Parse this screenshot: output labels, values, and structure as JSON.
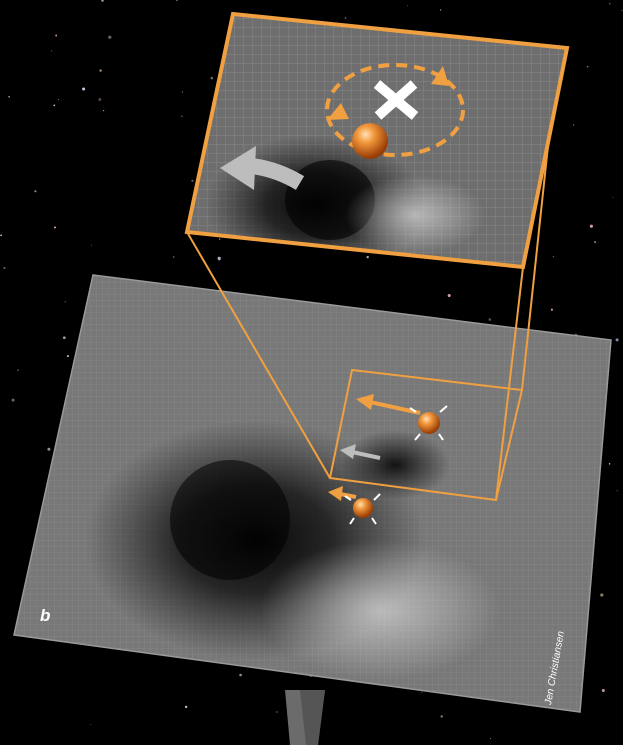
{
  "panel_label": "b",
  "credit": "Jen Christiansen",
  "colors": {
    "background": "#000000",
    "sheet_fill": "#7a7a7a",
    "grid_line": "#8e8e8e",
    "accent_orange": "#f0a040",
    "highlight_arrow": "#bdbdbd",
    "marker_white": "#ffffff"
  }
}
